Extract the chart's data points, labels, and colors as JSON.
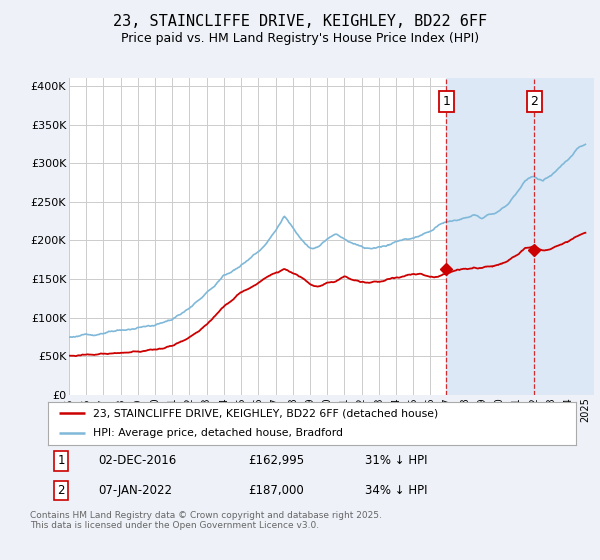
{
  "title": "23, STAINCLIFFE DRIVE, KEIGHLEY, BD22 6FF",
  "subtitle": "Price paid vs. HM Land Registry's House Price Index (HPI)",
  "ylabel_ticks": [
    "£0",
    "£50K",
    "£100K",
    "£150K",
    "£200K",
    "£250K",
    "£300K",
    "£350K",
    "£400K"
  ],
  "ytick_vals": [
    0,
    50000,
    100000,
    150000,
    200000,
    250000,
    300000,
    350000,
    400000
  ],
  "ylim": [
    0,
    410000
  ],
  "xlim_start": 1995.0,
  "xlim_end": 2025.5,
  "hpi_color": "#7fb8d8",
  "price_color": "#cc0000",
  "marker1_date": 2016.92,
  "marker2_date": 2022.03,
  "marker1_label": "1",
  "marker2_label": "2",
  "legend_label1": "23, STAINCLIFFE DRIVE, KEIGHLEY, BD22 6FF (detached house)",
  "legend_label2": "HPI: Average price, detached house, Bradford",
  "footer": "Contains HM Land Registry data © Crown copyright and database right 2025.\nThis data is licensed under the Open Government Licence v3.0.",
  "background_color": "#eef2f8",
  "plot_bg_color": "#ffffff",
  "grid_color": "#cccccc",
  "span_color": "#dce8f5",
  "title_fontsize": 11,
  "subtitle_fontsize": 9,
  "hpi_points": [
    [
      1995.0,
      75000
    ],
    [
      1996.0,
      77000
    ],
    [
      1997.0,
      80000
    ],
    [
      1998.0,
      83000
    ],
    [
      1999.0,
      87000
    ],
    [
      2000.0,
      90000
    ],
    [
      2001.0,
      97000
    ],
    [
      2002.0,
      110000
    ],
    [
      2003.0,
      130000
    ],
    [
      2004.0,
      155000
    ],
    [
      2005.0,
      170000
    ],
    [
      2006.0,
      188000
    ],
    [
      2007.0,
      215000
    ],
    [
      2007.5,
      235000
    ],
    [
      2008.0,
      220000
    ],
    [
      2008.5,
      205000
    ],
    [
      2009.0,
      195000
    ],
    [
      2009.5,
      197000
    ],
    [
      2010.0,
      205000
    ],
    [
      2010.5,
      212000
    ],
    [
      2011.0,
      207000
    ],
    [
      2011.5,
      200000
    ],
    [
      2012.0,
      197000
    ],
    [
      2012.5,
      195000
    ],
    [
      2013.0,
      198000
    ],
    [
      2013.5,
      200000
    ],
    [
      2014.0,
      205000
    ],
    [
      2014.5,
      208000
    ],
    [
      2015.0,
      210000
    ],
    [
      2015.5,
      215000
    ],
    [
      2016.0,
      220000
    ],
    [
      2016.5,
      227000
    ],
    [
      2017.0,
      230000
    ],
    [
      2017.5,
      233000
    ],
    [
      2018.0,
      235000
    ],
    [
      2018.5,
      237000
    ],
    [
      2019.0,
      235000
    ],
    [
      2019.5,
      238000
    ],
    [
      2020.0,
      242000
    ],
    [
      2020.5,
      250000
    ],
    [
      2021.0,
      265000
    ],
    [
      2021.5,
      280000
    ],
    [
      2022.0,
      285000
    ],
    [
      2022.5,
      280000
    ],
    [
      2023.0,
      285000
    ],
    [
      2023.5,
      295000
    ],
    [
      2024.0,
      305000
    ],
    [
      2024.5,
      318000
    ],
    [
      2025.0,
      325000
    ]
  ],
  "price_points": [
    [
      1995.0,
      50000
    ],
    [
      1996.0,
      52000
    ],
    [
      1997.0,
      53000
    ],
    [
      1998.0,
      54000
    ],
    [
      1999.0,
      56000
    ],
    [
      2000.0,
      58000
    ],
    [
      2001.0,
      62000
    ],
    [
      2002.0,
      72000
    ],
    [
      2003.0,
      90000
    ],
    [
      2004.0,
      112000
    ],
    [
      2005.0,
      130000
    ],
    [
      2006.0,
      142000
    ],
    [
      2007.0,
      155000
    ],
    [
      2007.5,
      160000
    ],
    [
      2008.0,
      155000
    ],
    [
      2008.5,
      148000
    ],
    [
      2009.0,
      138000
    ],
    [
      2009.5,
      136000
    ],
    [
      2010.0,
      140000
    ],
    [
      2010.5,
      143000
    ],
    [
      2011.0,
      148000
    ],
    [
      2011.5,
      143000
    ],
    [
      2012.0,
      140000
    ],
    [
      2012.5,
      138000
    ],
    [
      2013.0,
      140000
    ],
    [
      2013.5,
      143000
    ],
    [
      2014.0,
      145000
    ],
    [
      2014.5,
      148000
    ],
    [
      2015.0,
      150000
    ],
    [
      2015.5,
      150000
    ],
    [
      2016.0,
      148000
    ],
    [
      2016.5,
      150000
    ],
    [
      2017.0,
      155000
    ],
    [
      2017.5,
      157000
    ],
    [
      2018.0,
      158000
    ],
    [
      2018.5,
      160000
    ],
    [
      2019.0,
      160000
    ],
    [
      2019.5,
      162000
    ],
    [
      2020.0,
      165000
    ],
    [
      2020.5,
      170000
    ],
    [
      2021.0,
      178000
    ],
    [
      2021.5,
      188000
    ],
    [
      2022.0,
      190000
    ],
    [
      2022.5,
      185000
    ],
    [
      2023.0,
      188000
    ],
    [
      2023.5,
      193000
    ],
    [
      2024.0,
      198000
    ],
    [
      2024.5,
      205000
    ],
    [
      2025.0,
      210000
    ]
  ]
}
